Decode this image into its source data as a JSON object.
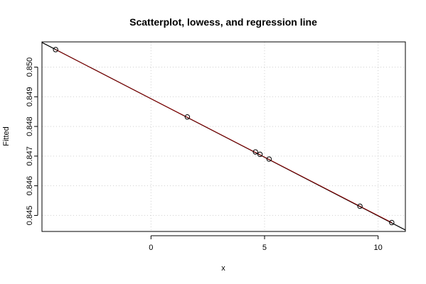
{
  "chart_data": {
    "type": "scatter",
    "title": "Scatterplot, lowess, and regression line",
    "xlabel": "x",
    "ylabel": "Fitted",
    "xlim": [
      -4.8,
      11.2
    ],
    "ylim": [
      0.84446,
      0.85085
    ],
    "x_ticks": [
      0,
      5,
      10
    ],
    "y_ticks": [
      0.845,
      0.846,
      0.847,
      0.848,
      0.849,
      0.85
    ],
    "y_tick_labels": [
      "0.845",
      "0.846",
      "0.847",
      "0.848",
      "0.849",
      "0.850"
    ],
    "grid": true,
    "points": [
      {
        "x": -4.2,
        "y": 0.85059
      },
      {
        "x": 1.6,
        "y": 0.84832
      },
      {
        "x": 4.6,
        "y": 0.84714
      },
      {
        "x": 4.8,
        "y": 0.84706
      },
      {
        "x": 5.2,
        "y": 0.8469
      },
      {
        "x": 9.2,
        "y": 0.84531
      },
      {
        "x": 10.6,
        "y": 0.84476
      }
    ],
    "lines": [
      {
        "kind": "regression",
        "color": "#000000",
        "x": [
          -4.8,
          11.2
        ],
        "y": [
          0.85083,
          0.84451
        ]
      },
      {
        "kind": "lowess",
        "color": "#8b0000",
        "x": [
          -4.2,
          10.6
        ],
        "y": [
          0.85059,
          0.84476
        ]
      }
    ]
  }
}
